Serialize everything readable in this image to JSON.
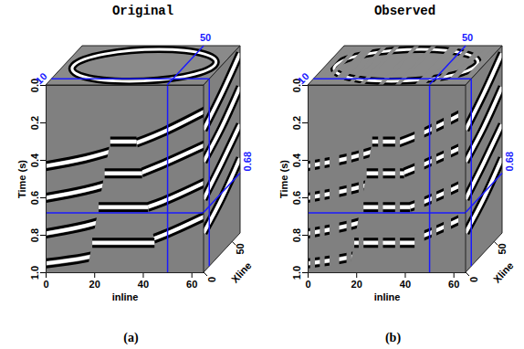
{
  "chart_data": {
    "type": "seismic_cube",
    "x_label": "inline",
    "xlim": [
      0,
      65
    ],
    "xticks": [
      0,
      20,
      40,
      60
    ],
    "y_label": "Time (s)",
    "ylim": [
      0,
      1
    ],
    "yticks": [
      0,
      0.2,
      0.4,
      0.6,
      0.8,
      1
    ],
    "z_label": "Xline",
    "zlim": [
      0,
      64
    ],
    "zticks": [
      0,
      50
    ],
    "slices": {
      "inline": 50,
      "xline": 10,
      "time": 0.68
    },
    "events": [
      {
        "inline": [
          0,
          16,
          32,
          48,
          65
        ],
        "time": [
          0.43,
          0.39,
          0.33,
          0.25,
          0.14
        ]
      },
      {
        "inline": [
          0,
          16,
          32,
          48,
          65
        ],
        "time": [
          0.6,
          0.56,
          0.5,
          0.42,
          0.32
        ]
      },
      {
        "inline": [
          0,
          16,
          32,
          48,
          65
        ],
        "time": [
          0.79,
          0.75,
          0.69,
          0.62,
          0.52
        ]
      },
      {
        "inline": [
          0,
          16,
          32,
          48,
          65
        ],
        "time": [
          0.95,
          0.92,
          0.87,
          0.8,
          0.7
        ]
      }
    ],
    "block": {
      "time": [
        0.27,
        1
      ],
      "left": [
        27,
        17
      ],
      "right": [
        37,
        47
      ],
      "events": [
        {
          "time": 0.3,
          "inline": [
            26.6,
            37.4
          ]
        },
        {
          "time": 0.47,
          "inline": [
            24.3,
            39.7
          ]
        },
        {
          "time": 0.65,
          "inline": [
            21.8,
            42.2
          ]
        },
        {
          "time": 0.84,
          "inline": [
            19.2,
            44.8
          ]
        }
      ]
    },
    "side_events": [
      {
        "xline": [
          0,
          32,
          64
        ],
        "time": [
          0.24,
          0.15,
          0.04
        ]
      },
      {
        "xline": [
          0,
          32,
          64
        ],
        "time": [
          0.41,
          0.33,
          0.22
        ]
      },
      {
        "xline": [
          0,
          32,
          64
        ],
        "time": [
          0.61,
          0.52,
          0.42
        ]
      },
      {
        "xline": [
          0,
          32,
          64
        ],
        "time": [
          0.79,
          0.71,
          0.6
        ]
      }
    ],
    "ring": {
      "center": [
        33,
        32
      ],
      "radii": [
        29,
        26
      ]
    },
    "panels": [
      {
        "letter": "(a)",
        "title": "Original"
      },
      {
        "letter": "(b)",
        "title": "Observed",
        "missing_traces": [
          [
            1,
            3
          ],
          [
            5,
            7
          ],
          [
            9,
            13
          ],
          [
            16,
            18
          ],
          [
            21,
            23
          ],
          [
            29,
            31
          ],
          [
            36,
            38
          ],
          [
            44,
            48
          ],
          [
            51,
            53
          ],
          [
            56,
            59
          ],
          [
            62,
            65
          ]
        ]
      }
    ]
  }
}
